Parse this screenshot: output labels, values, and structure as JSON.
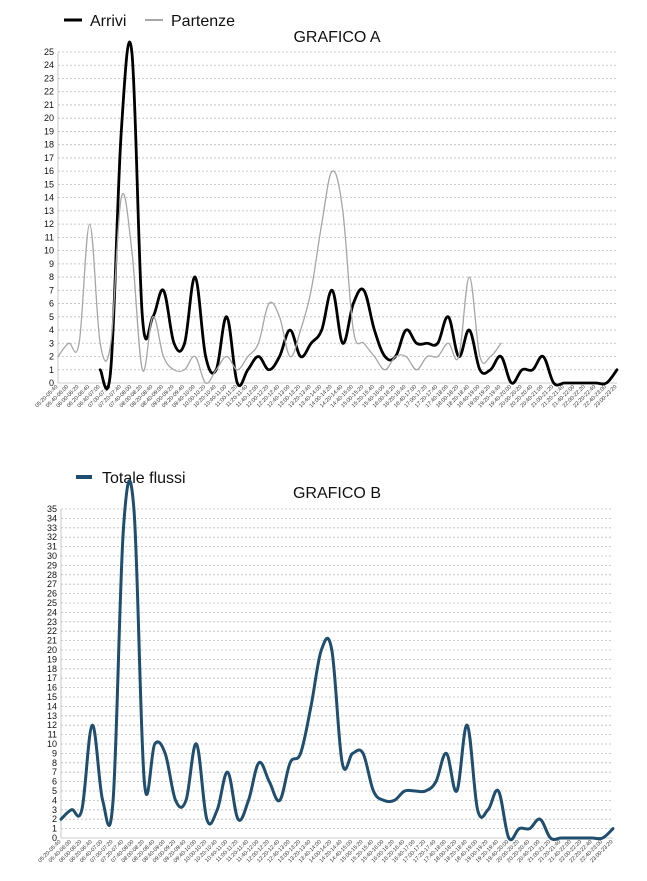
{
  "chart_data": [
    {
      "type": "line",
      "title": "GRAFICO A",
      "ylim": [
        0,
        25
      ],
      "grid": true,
      "legend": "top-left",
      "x": [
        "05:20-05:40",
        "05:40-06:00",
        "06:00-06:20",
        "06:20-06:40",
        "06:40-07:00",
        "07:00-07:20",
        "07:20-07:40",
        "07:40-08:00",
        "08:00-08:20",
        "08:20-08:40",
        "08:40-09:00",
        "09:00-09:20",
        "09:20-09:40",
        "09:40-10:00",
        "10:00-10:20",
        "10:20-10:40",
        "10:40-11:00",
        "11:00-11:20",
        "11:20-11:40",
        "11:40-12:00",
        "12:00-12:20",
        "12:20-12:40",
        "12:40-13:00",
        "13:00-13:20",
        "13:20-13:40",
        "13:40-14:00",
        "14:00-14:20",
        "14:20-14:40",
        "14:40-15:00",
        "15:00-15:20",
        "15:20-15:40",
        "15:40-16:00",
        "16:00-16:20",
        "16:20-16:40",
        "16:40-17:00",
        "17:00-17:20",
        "17:20-17:40",
        "17:40-18:00",
        "18:00-18:20",
        "18:20-18:40",
        "18:40-19:00",
        "19:00-19:20",
        "19:20-19:40",
        "19:40-20:00",
        "20:00-20:20",
        "20:20-20:40",
        "20:40-21:00",
        "21:00-21:20",
        "21:20-21:40",
        "21:40-22:00",
        "22:00-22:20",
        "22:20-22:40",
        "22:40-23:00",
        "23:00-23:20"
      ],
      "series": [
        {
          "name": "Arrivi",
          "color": "#000000",
          "values": [
            null,
            null,
            null,
            null,
            1,
            1,
            19,
            25,
            5,
            5,
            7,
            3,
            3,
            8,
            2,
            1,
            5,
            0,
            1,
            2,
            1,
            2,
            4,
            2,
            3,
            4,
            7,
            3,
            6,
            7,
            4,
            2,
            2,
            4,
            3,
            3,
            3,
            5,
            2,
            4,
            1,
            1,
            2,
            0,
            1,
            1,
            2,
            0,
            0,
            0,
            0,
            0,
            0,
            1
          ]
        },
        {
          "name": "Partenze",
          "color": "#a6a6a6",
          "values": [
            2,
            3,
            3,
            12,
            3,
            3,
            14,
            10,
            1,
            5,
            2,
            1,
            1,
            2,
            0,
            1,
            2,
            1,
            2,
            3,
            6,
            5,
            2,
            4,
            7,
            12,
            16,
            13,
            4,
            3,
            2,
            1,
            2,
            2,
            1,
            2,
            2,
            3,
            2,
            8,
            2,
            2,
            3,
            null,
            null,
            null,
            null,
            null,
            null,
            null,
            null,
            null,
            null,
            null
          ]
        }
      ]
    },
    {
      "type": "line",
      "title": "GRAFICO B",
      "ylim": [
        0,
        35
      ],
      "grid": true,
      "legend": "top-left",
      "x": [
        "05:20-05:40",
        "05:40-06:00",
        "06:00-06:20",
        "06:20-06:40",
        "06:40-07:00",
        "07:00-07:20",
        "07:20-07:40",
        "07:40-08:00",
        "08:00-08:20",
        "08:20-08:40",
        "08:40-09:00",
        "09:00-09:20",
        "09:20-09:40",
        "09:40-10:00",
        "10:00-10:20",
        "10:20-10:40",
        "10:40-11:00",
        "11:00-11:20",
        "11:20-11:40",
        "11:40-12:00",
        "12:00-12:20",
        "12:20-12:40",
        "12:40-13:00",
        "13:00-13:20",
        "13:20-13:40",
        "13:40-14:00",
        "14:00-14:20",
        "14:20-14:40",
        "14:40-15:00",
        "15:00-15:20",
        "15:20-15:40",
        "15:40-16:00",
        "16:00-16:20",
        "16:20-16:40",
        "16:40-17:00",
        "17:00-17:20",
        "17:20-17:40",
        "17:40-18:00",
        "18:00-18:20",
        "18:20-18:40",
        "18:40-19:00",
        "19:00-19:20",
        "19:20-19:40",
        "19:40-20:00",
        "20:00-20:20",
        "20:20-20:40",
        "20:40-21:00",
        "21:00-21:20",
        "21:20-21:40",
        "21:40-22:00",
        "22:00-22:20",
        "22:20-22:40",
        "22:40-23:00",
        "23:00-23:20"
      ],
      "series": [
        {
          "name": "Totale flussi",
          "color": "#1f4e6e",
          "values": [
            2,
            3,
            3,
            12,
            4,
            4,
            33,
            35,
            6,
            10,
            9,
            4,
            4,
            10,
            2,
            3,
            7,
            2,
            4,
            8,
            6,
            4,
            8,
            9,
            14,
            20,
            20,
            8,
            9,
            9,
            5,
            4,
            4,
            5,
            5,
            5,
            6,
            9,
            5,
            12,
            3,
            3,
            5,
            0,
            1,
            1,
            2,
            0,
            0,
            0,
            0,
            0,
            0,
            1
          ]
        }
      ]
    }
  ]
}
